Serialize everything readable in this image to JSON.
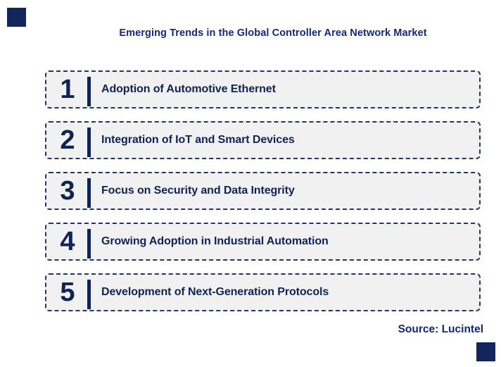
{
  "title": "Emerging Trends in the Global Controller Area Network Market",
  "trends": [
    {
      "number": "1",
      "label": "Adoption of Automotive Ethernet"
    },
    {
      "number": "2",
      "label": "Integration of IoT and Smart Devices"
    },
    {
      "number": "3",
      "label": "Focus on Security and Data Integrity"
    },
    {
      "number": "4",
      "label": "Growing Adoption in Industrial Automation"
    },
    {
      "number": "5",
      "label": "Development of Next-Generation Protocols"
    }
  ],
  "source": "Source: Lucintel",
  "colors": {
    "title_text": "#14277E",
    "item_text": "#0F2355",
    "box_border": "#1F3864",
    "box_fill": "#F1F1F2",
    "corner_square": "#13265C"
  }
}
